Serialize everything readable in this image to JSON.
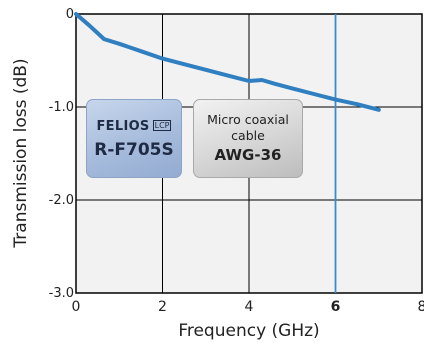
{
  "chart_data": {
    "type": "line",
    "xlabel": "Frequency (GHz)",
    "ylabel": "Transmission loss (dB)",
    "xlim": [
      0,
      8
    ],
    "ylim": [
      -3.0,
      0
    ],
    "x_ticks": [
      {
        "value": 0,
        "label": "0"
      },
      {
        "value": 2,
        "label": "2"
      },
      {
        "value": 4,
        "label": "4"
      },
      {
        "value": 6,
        "label": "6"
      },
      {
        "value": 8,
        "label": "8"
      }
    ],
    "y_ticks": [
      {
        "value": 0,
        "label": "0"
      },
      {
        "value": -1.0,
        "label": "-1.0"
      },
      {
        "value": -2.0,
        "label": "-2.0"
      },
      {
        "value": -3.0,
        "label": "-3.0"
      }
    ],
    "grid": true,
    "highlight_x": 6,
    "highlight_color": "#3a8cc8",
    "series": [
      {
        "color": "#2f7fc1",
        "x": [
          0,
          0.3,
          0.65,
          1.0,
          1.5,
          2.0,
          2.5,
          3.0,
          3.5,
          4.0,
          4.3,
          4.6,
          5.0,
          5.5,
          6.0,
          6.5,
          7.0
        ],
        "y": [
          0,
          -0.12,
          -0.27,
          -0.32,
          -0.4,
          -0.48,
          -0.54,
          -0.6,
          -0.66,
          -0.72,
          -0.71,
          -0.75,
          -0.8,
          -0.86,
          -0.92,
          -0.97,
          -1.03
        ]
      }
    ],
    "annotations": {
      "felios": {
        "brand": "FELIOS",
        "tag": "LCP",
        "model": "R-F705S"
      },
      "coax": {
        "line1": "Micro coaxial",
        "line2": "cable",
        "line3": "AWG-36"
      }
    }
  }
}
